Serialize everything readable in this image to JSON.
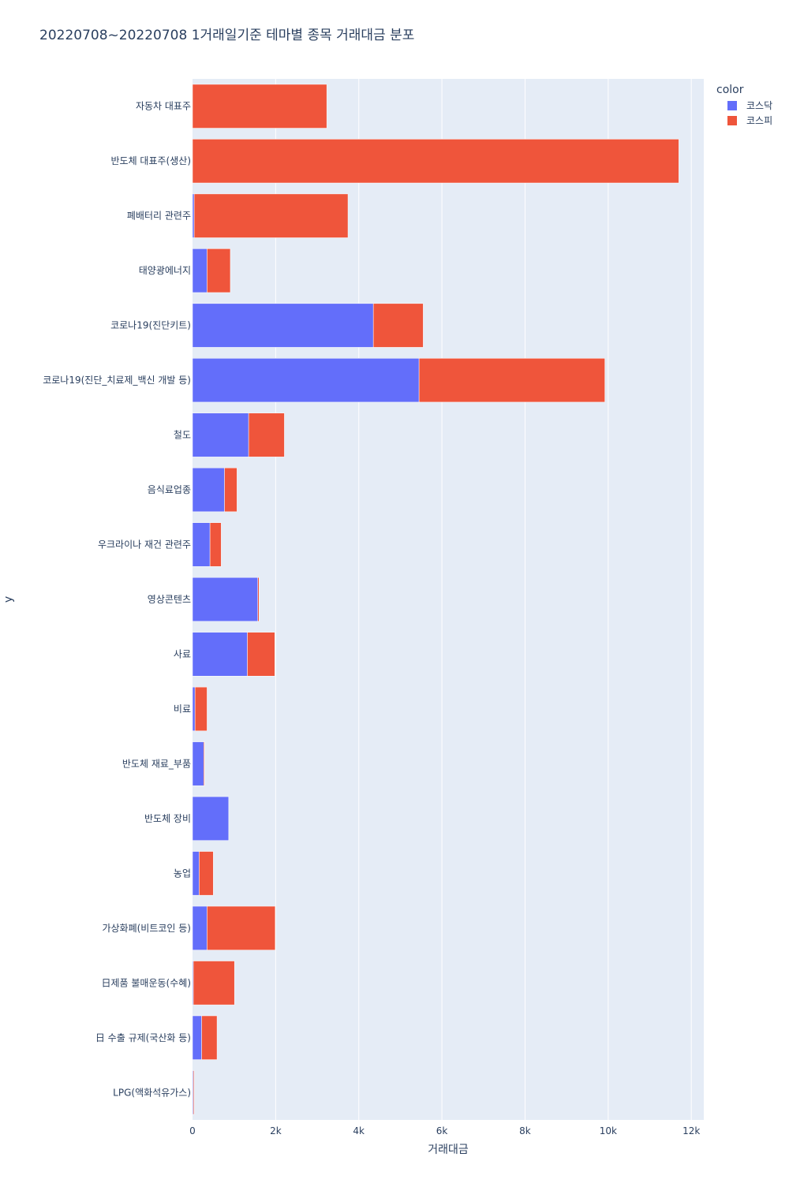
{
  "chart_data": {
    "type": "bar",
    "orientation": "horizontal",
    "barmode": "stack",
    "title": "20220708~20220708 1거래일기준 테마별 종목 거래대금 분포",
    "xlabel": "거래대금",
    "ylabel": "y",
    "xlim": [
      0,
      12300
    ],
    "x_ticks": [
      0,
      2000,
      4000,
      6000,
      8000,
      10000,
      12000
    ],
    "x_tick_labels": [
      "0",
      "2k",
      "4k",
      "6k",
      "8k",
      "10k",
      "12k"
    ],
    "grid": true,
    "legend": {
      "title": "color",
      "position": "top-right"
    },
    "categories": [
      "자동차 대표주",
      "반도체 대표주(생산)",
      "폐배터리 관련주",
      "태양광에너지",
      "코로나19(진단키트)",
      "코로나19(진단_치료제_백신 개발 등)",
      "철도",
      "음식료업종",
      "우크라이나 재건 관련주",
      "영상콘텐츠",
      "사료",
      "비료",
      "반도체 재료_부품",
      "반도체 장비",
      "농업",
      "가상화폐(비트코인 등)",
      "日제품 불매운동(수혜)",
      "日 수출 규제(국산화 등)",
      "LPG(액화석유가스)"
    ],
    "series": [
      {
        "name": "코스닥",
        "color": "#636efa",
        "values": [
          0,
          0,
          40,
          350,
          4350,
          5450,
          1350,
          770,
          420,
          1570,
          1320,
          60,
          270,
          870,
          160,
          350,
          20,
          220,
          20
        ]
      },
      {
        "name": "코스피",
        "color": "#ef553b",
        "values": [
          3230,
          11700,
          3700,
          560,
          1200,
          4470,
          860,
          300,
          270,
          30,
          660,
          290,
          20,
          0,
          340,
          1640,
          990,
          370,
          20
        ]
      }
    ]
  }
}
